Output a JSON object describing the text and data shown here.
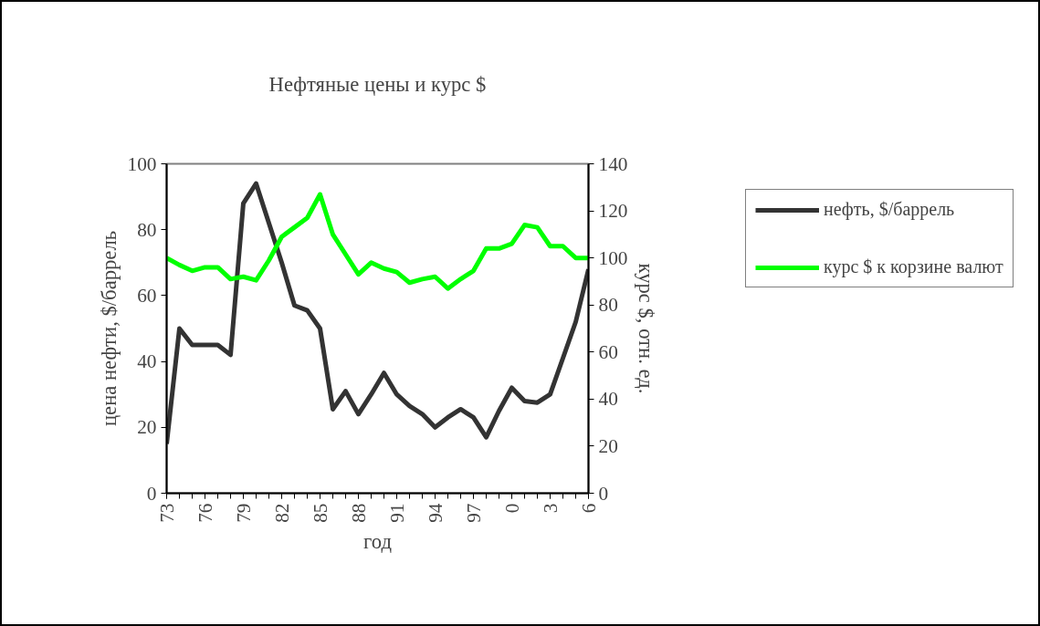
{
  "chart_data": {
    "type": "line",
    "title": "Нефтяные цены и курс $",
    "xlabel": "год",
    "ylabel": "цена нефти, $/баррель",
    "y2label": "курс $, отн. ед.",
    "categories": [
      "73",
      null,
      null,
      "76",
      null,
      null,
      "79",
      null,
      null,
      "82",
      null,
      null,
      "85",
      null,
      null,
      "88",
      null,
      null,
      "91",
      null,
      null,
      "94",
      null,
      null,
      "97",
      null,
      null,
      "0",
      null,
      null,
      "3",
      null,
      null,
      "6"
    ],
    "series": [
      {
        "name": "нефть, $/баррель",
        "color": "#333333",
        "values": [
          15,
          50,
          45,
          45,
          45,
          42,
          88,
          94,
          82,
          70,
          57,
          55.5,
          50,
          25.5,
          31,
          24,
          30,
          36.5,
          30,
          26.5,
          24,
          20,
          23,
          25.5,
          23,
          17,
          25,
          32,
          28,
          27.5,
          30,
          41,
          52,
          68
        ]
      },
      {
        "name": "курс $ к корзине валют",
        "color": "#00ff00",
        "axis": "y2",
        "values": [
          100,
          97,
          94.5,
          96,
          96,
          91,
          92,
          90.5,
          99,
          109,
          113,
          117,
          127,
          110,
          101.5,
          93,
          98,
          95.5,
          94,
          89.5,
          91,
          92,
          87,
          91,
          94.5,
          104,
          104,
          106,
          114,
          113,
          105,
          105,
          100,
          100
        ]
      }
    ],
    "ylim": [
      0,
      100
    ],
    "yticks": [
      0,
      20,
      40,
      60,
      80,
      100
    ],
    "y2lim": [
      0,
      140
    ],
    "y2ticks": [
      0,
      20,
      40,
      60,
      80,
      100,
      120,
      140
    ],
    "grid": false,
    "legend": "right",
    "line_style": "solid",
    "marker": "none"
  }
}
